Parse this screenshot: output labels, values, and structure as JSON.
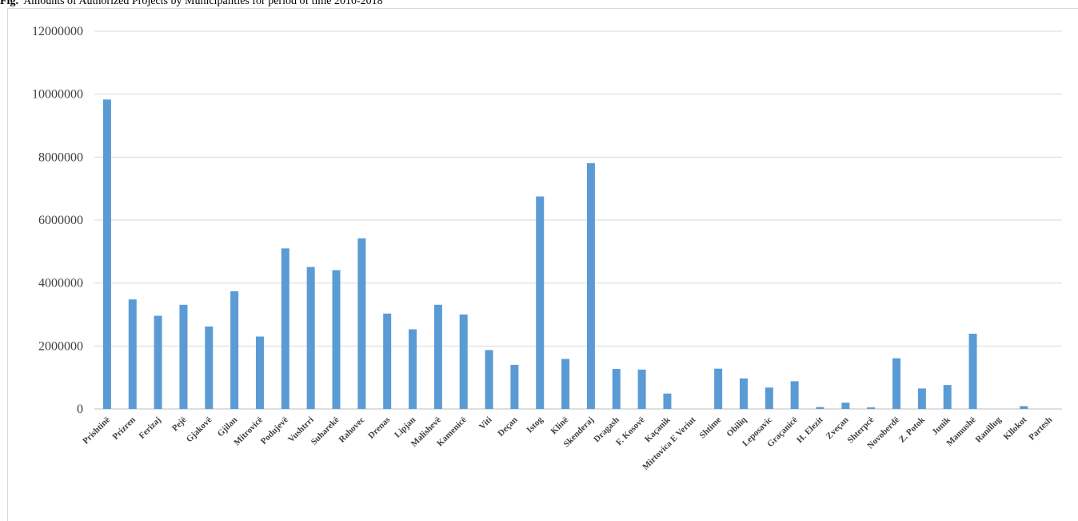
{
  "caption": {
    "prefix": "Fig.",
    "text": "Amounts of Authorized Projects by Municipalities for period of time 2010-2018"
  },
  "colors": {
    "bar": "#5b9bd5",
    "grid": "#d9d9d9",
    "axis": "#bfbfbf",
    "text": "#404040"
  },
  "chart_data": {
    "type": "bar",
    "title": "",
    "xlabel": "",
    "ylabel": "",
    "ylim": [
      0,
      12000000
    ],
    "yticks": [
      0,
      2000000,
      4000000,
      6000000,
      8000000,
      10000000,
      12000000
    ],
    "grid": true,
    "categories": [
      "Prishtinë",
      "Prizren",
      "Ferizaj",
      "Pejë",
      "Gjakovë",
      "Gjilan",
      "Mitrovicë",
      "Podujevë",
      "Vushtrri",
      "Suharekë",
      "Rahovec",
      "Drenas",
      "Lipjan",
      "Malishevë",
      "Kamenicë",
      "Viti",
      "Deçan",
      "Istog",
      "Klinë",
      "Skenderaj",
      "Dragash",
      "F. Kosovë",
      "Kaçanik",
      "Mirtovica E Veriut",
      "Shtime",
      "Obiliq",
      "Leposavic",
      "Graçanicë",
      "H. Elezit",
      "Zveçan",
      "Shterpcë",
      "Novoberdë",
      "Z. Potok",
      "Junik",
      "Mamushë",
      "Ranillug",
      "Kllokot",
      "Partesh"
    ],
    "values": [
      9830000,
      3480000,
      2960000,
      3310000,
      2620000,
      3740000,
      2300000,
      5100000,
      4510000,
      4410000,
      5420000,
      3030000,
      2530000,
      3310000,
      3000000,
      1870000,
      1400000,
      6750000,
      1590000,
      7810000,
      1270000,
      1250000,
      490000,
      0,
      1280000,
      970000,
      680000,
      880000,
      60000,
      200000,
      50000,
      1610000,
      650000,
      760000,
      2390000,
      0,
      90000,
      0
    ]
  }
}
